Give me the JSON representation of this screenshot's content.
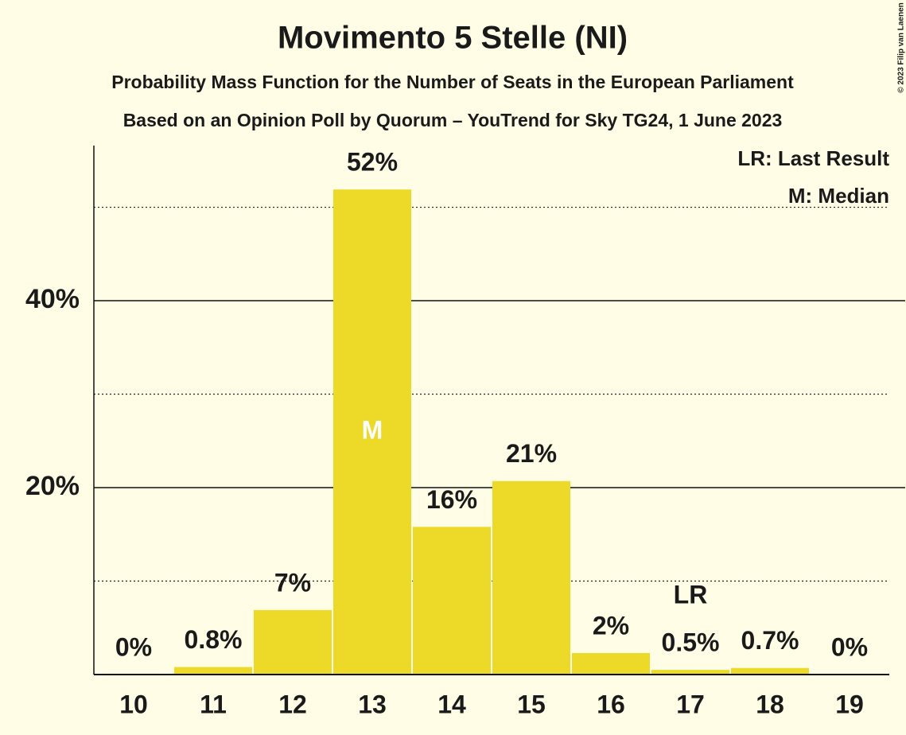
{
  "chart_data": {
    "type": "bar",
    "title": "Movimento 5 Stelle (NI)",
    "subtitle": "Probability Mass Function for the Number of Seats in the European Parliament",
    "subtitle2": "Based on an Opinion Poll by Quorum – YouTrend for Sky TG24, 1 June 2023",
    "categories": [
      "10",
      "11",
      "12",
      "13",
      "14",
      "15",
      "16",
      "17",
      "18",
      "19"
    ],
    "values": [
      0,
      0.8,
      6.9,
      51.9,
      15.8,
      20.7,
      2.3,
      0.5,
      0.7,
      0
    ],
    "value_labels": [
      "0%",
      "0.8%",
      "7%",
      "52%",
      "16%",
      "21%",
      "2%",
      "0.5%",
      "0.7%",
      "0%"
    ],
    "color": "#edd928",
    "ylim": [
      0,
      56.6
    ],
    "yticks": [
      {
        "value": 20,
        "label": "20%"
      },
      {
        "value": 40,
        "label": "40%"
      }
    ],
    "minor_yticks": [
      10,
      30,
      50
    ],
    "grid": true,
    "markers": [
      {
        "label": "M",
        "category": "13",
        "position": "inside"
      },
      {
        "label": "LR",
        "category": "17",
        "position": "above"
      }
    ],
    "legend": [
      "LR: Last Result",
      "M: Median"
    ],
    "legend_position": "top-right",
    "copyright": "© 2023 Filip van Laenen"
  }
}
